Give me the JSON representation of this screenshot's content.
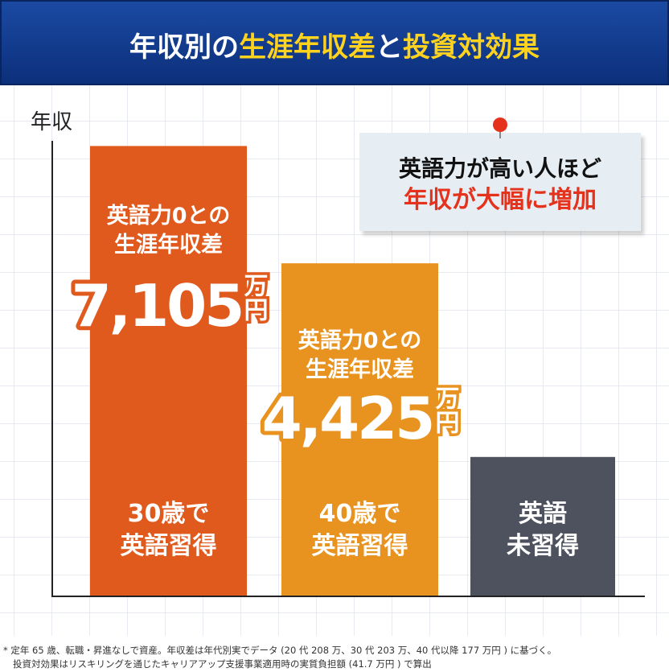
{
  "chart_data": {
    "type": "bar",
    "title_parts": [
      "年収別の",
      "生涯年収差",
      "と",
      "投資対効果"
    ],
    "y_label": "年収",
    "categories": [
      [
        "30歳で",
        "英語習得"
      ],
      [
        "40歳で",
        "英語習得"
      ],
      [
        "英語",
        "未習得"
      ]
    ],
    "values": [
      10290,
      7610,
      3185
    ],
    "colors": [
      "#e05a1e",
      "#e8931f",
      "#4d525e"
    ],
    "ylim": [
      0,
      10500
    ],
    "gap_labels": [
      {
        "caption": [
          "英語力0との",
          "生涯年収差"
        ],
        "value": 7105,
        "label": "7,105",
        "unit": "万円"
      },
      {
        "caption": [
          "英語力0との",
          "生涯年収差"
        ],
        "value": 4425,
        "label": "4,425",
        "unit": "万円"
      }
    ],
    "callout": [
      "英語力が高い人ほど",
      "年収が大幅に増加"
    ],
    "footnote": [
      "* 定年 65 歳、転職・昇進なしで資産。年収差は年代別実でデータ (20 代 208 万、30 代 203 万、40 代以降 177 万円 ) に基づく。",
      "投資対効果はリスキリングを通じたキャリアアップ支援事業適用時の実質負担額 (41.7 万円 ) で算出"
    ]
  }
}
